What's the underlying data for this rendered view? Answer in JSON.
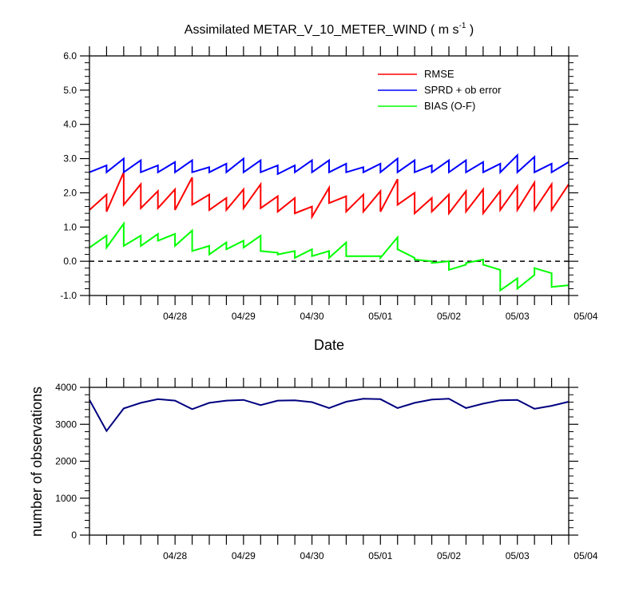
{
  "chart_data": [
    {
      "type": "line",
      "title": "Assimilated METAR_V_10_METER_WIND",
      "title_unit": "( m s",
      "title_unit_exp": "-1",
      "title_unit_end": " )",
      "xlabel": "Date",
      "ylabel": "",
      "ylim": [
        -1.0,
        6.0
      ],
      "yticks": [
        "-1.0",
        "0.0",
        "1.0",
        "2.0",
        "3.0",
        "4.0",
        "5.0",
        "6.0"
      ],
      "xticks": [
        "04/28",
        "04/29",
        "04/30",
        "05/01",
        "05/02",
        "05/03",
        "05/04"
      ],
      "xlim": [
        "04/27 06:00",
        "05/04 06:00"
      ],
      "zero_line": "dashed",
      "legend_position": "top-right",
      "series": [
        {
          "name": "RMSE",
          "color": "#ff0000",
          "x": [
            "04/27 06:00",
            "04/27 12:00",
            "04/27 12:00",
            "04/27 18:00",
            "04/27 18:00",
            "04/28 00:00",
            "04/28 00:00",
            "04/28 06:00",
            "04/28 06:00",
            "04/28 12:00",
            "04/28 12:00",
            "04/28 18:00",
            "04/28 18:00",
            "04/29 00:00",
            "04/29 00:00",
            "04/29 06:00",
            "04/29 06:00",
            "04/29 12:00",
            "04/29 12:00",
            "04/29 18:00",
            "04/29 18:00",
            "04/30 00:00",
            "04/30 00:00",
            "04/30 06:00",
            "04/30 06:00",
            "04/30 12:00",
            "04/30 12:00",
            "04/30 18:00",
            "04/30 18:00",
            "05/01 00:00",
            "05/01 00:00",
            "05/01 06:00",
            "05/01 06:00",
            "05/01 12:00",
            "05/01 12:00",
            "05/01 18:00",
            "05/01 18:00",
            "05/02 00:00",
            "05/02 00:00",
            "05/02 06:00",
            "05/02 06:00",
            "05/02 12:00",
            "05/02 12:00",
            "05/02 18:00",
            "05/02 18:00",
            "05/03 00:00",
            "05/03 00:00",
            "05/03 06:00",
            "05/03 06:00",
            "05/03 12:00",
            "05/03 12:00",
            "05/03 18:00",
            "05/03 18:00",
            "05/04 00:00",
            "05/04 00:00",
            "05/04 06:00"
          ],
          "y": [
            1.5,
            1.95,
            1.45,
            2.6,
            1.65,
            2.25,
            1.55,
            2.05,
            1.55,
            2.1,
            1.5,
            2.45,
            1.65,
            1.95,
            1.5,
            1.85,
            1.5,
            2.1,
            1.55,
            2.25,
            1.55,
            1.9,
            1.45,
            1.85,
            1.4,
            1.6,
            1.3,
            2.15,
            1.7,
            1.9,
            1.45,
            1.95,
            1.45,
            2.05,
            1.45,
            2.4,
            1.65,
            2.0,
            1.4,
            1.85,
            1.45,
            1.95,
            1.4,
            2.05,
            1.45,
            2.1,
            1.4,
            2.05,
            1.5,
            2.2,
            1.5,
            2.3,
            1.5,
            2.25,
            1.5,
            2.25
          ]
        },
        {
          "name": "SPRD + ob error",
          "color": "#0000ff",
          "x": [
            "04/27 06:00",
            "04/27 12:00",
            "04/27 12:00",
            "04/27 18:00",
            "04/27 18:00",
            "04/28 00:00",
            "04/28 00:00",
            "04/28 06:00",
            "04/28 06:00",
            "04/28 12:00",
            "04/28 12:00",
            "04/28 18:00",
            "04/28 18:00",
            "04/29 00:00",
            "04/29 00:00",
            "04/29 06:00",
            "04/29 06:00",
            "04/29 12:00",
            "04/29 12:00",
            "04/29 18:00",
            "04/29 18:00",
            "04/30 00:00",
            "04/30 00:00",
            "04/30 06:00",
            "04/30 06:00",
            "04/30 12:00",
            "04/30 12:00",
            "04/30 18:00",
            "04/30 18:00",
            "05/01 00:00",
            "05/01 00:00",
            "05/01 06:00",
            "05/01 06:00",
            "05/01 12:00",
            "05/01 12:00",
            "05/01 18:00",
            "05/01 18:00",
            "05/02 00:00",
            "05/02 00:00",
            "05/02 06:00",
            "05/02 06:00",
            "05/02 12:00",
            "05/02 12:00",
            "05/02 18:00",
            "05/02 18:00",
            "05/03 00:00",
            "05/03 00:00",
            "05/03 06:00",
            "05/03 06:00",
            "05/03 12:00",
            "05/03 12:00",
            "05/03 18:00",
            "05/03 18:00",
            "05/04 00:00",
            "05/04 00:00",
            "05/04 06:00"
          ],
          "y": [
            2.6,
            2.8,
            2.6,
            3.0,
            2.6,
            2.95,
            2.6,
            2.8,
            2.6,
            2.9,
            2.6,
            2.95,
            2.6,
            2.75,
            2.6,
            2.85,
            2.6,
            3.0,
            2.6,
            2.95,
            2.6,
            2.8,
            2.55,
            2.8,
            2.6,
            2.95,
            2.6,
            2.95,
            2.6,
            2.85,
            2.6,
            2.75,
            2.6,
            2.85,
            2.6,
            3.0,
            2.6,
            2.95,
            2.6,
            2.8,
            2.6,
            2.95,
            2.6,
            2.95,
            2.6,
            2.9,
            2.6,
            2.85,
            2.6,
            3.1,
            2.6,
            3.05,
            2.6,
            2.85,
            2.6,
            2.9
          ]
        },
        {
          "name": "BIAS (O-F)",
          "color": "#00ff00",
          "x": [
            "04/27 06:00",
            "04/27 12:00",
            "04/27 12:00",
            "04/27 18:00",
            "04/27 18:00",
            "04/28 00:00",
            "04/28 00:00",
            "04/28 06:00",
            "04/28 06:00",
            "04/28 12:00",
            "04/28 12:00",
            "04/28 18:00",
            "04/28 18:00",
            "04/29 00:00",
            "04/29 00:00",
            "04/29 06:00",
            "04/29 06:00",
            "04/29 12:00",
            "04/29 12:00",
            "04/29 18:00",
            "04/29 18:00",
            "04/30 00:00",
            "04/30 00:00",
            "04/30 06:00",
            "04/30 06:00",
            "04/30 12:00",
            "04/30 12:00",
            "04/30 18:00",
            "04/30 18:00",
            "05/01 00:00",
            "05/01 00:00",
            "05/01 06:00",
            "05/01 06:00",
            "05/01 12:00",
            "05/01 12:00",
            "05/01 18:00",
            "05/01 18:00",
            "05/02 00:00",
            "05/02 00:00",
            "05/02 06:00",
            "05/02 06:00",
            "05/02 12:00",
            "05/02 12:00",
            "05/02 18:00",
            "05/02 18:00",
            "05/03 00:00",
            "05/03 00:00",
            "05/03 06:00",
            "05/03 06:00",
            "05/03 12:00",
            "05/03 12:00",
            "05/03 18:00",
            "05/03 18:00",
            "05/04 00:00",
            "05/04 00:00",
            "05/04 06:00"
          ],
          "y": [
            0.4,
            0.75,
            0.4,
            1.1,
            0.45,
            0.75,
            0.45,
            0.8,
            0.6,
            0.8,
            0.45,
            0.9,
            0.3,
            0.45,
            0.2,
            0.55,
            0.35,
            0.6,
            0.4,
            0.75,
            0.3,
            0.25,
            0.2,
            0.3,
            0.1,
            0.35,
            0.15,
            0.3,
            0.1,
            0.55,
            0.15,
            0.15,
            0.15,
            0.15,
            0.1,
            0.7,
            0.35,
            0.1,
            0.05,
            0.0,
            -0.05,
            0.0,
            -0.25,
            -0.1,
            -0.05,
            0.05,
            -0.1,
            -0.25,
            -0.85,
            -0.5,
            -0.8,
            -0.4,
            -0.2,
            -0.35,
            -0.75,
            -0.7
          ]
        }
      ]
    },
    {
      "type": "line",
      "title": "",
      "xlabel": "",
      "ylabel": "number of observations",
      "ylim": [
        0,
        4000
      ],
      "yticks": [
        "0",
        "1000",
        "2000",
        "3000",
        "4000"
      ],
      "xticks": [
        "04/28",
        "04/29",
        "04/30",
        "05/01",
        "05/02",
        "05/03",
        "05/04"
      ],
      "xlim": [
        "04/27 06:00",
        "05/04 06:00"
      ],
      "series": [
        {
          "color": "#000080",
          "x": [
            "04/27 06:00",
            "04/27 12:00",
            "04/27 18:00",
            "04/28 00:00",
            "04/28 06:00",
            "04/28 12:00",
            "04/28 18:00",
            "04/29 00:00",
            "04/29 06:00",
            "04/29 12:00",
            "04/29 18:00",
            "04/30 00:00",
            "04/30 06:00",
            "04/30 12:00",
            "04/30 18:00",
            "05/01 00:00",
            "05/01 06:00",
            "05/01 12:00",
            "05/01 18:00",
            "05/02 00:00",
            "05/02 06:00",
            "05/02 12:00",
            "05/02 18:00",
            "05/03 00:00",
            "05/03 06:00",
            "05/03 12:00",
            "05/03 18:00",
            "05/04 00:00",
            "05/04 06:00"
          ],
          "y": [
            3660,
            2820,
            3430,
            3580,
            3680,
            3640,
            3410,
            3580,
            3640,
            3660,
            3520,
            3640,
            3650,
            3600,
            3440,
            3610,
            3690,
            3680,
            3440,
            3580,
            3670,
            3690,
            3440,
            3560,
            3650,
            3660,
            3420,
            3500,
            3610
          ]
        }
      ]
    }
  ]
}
